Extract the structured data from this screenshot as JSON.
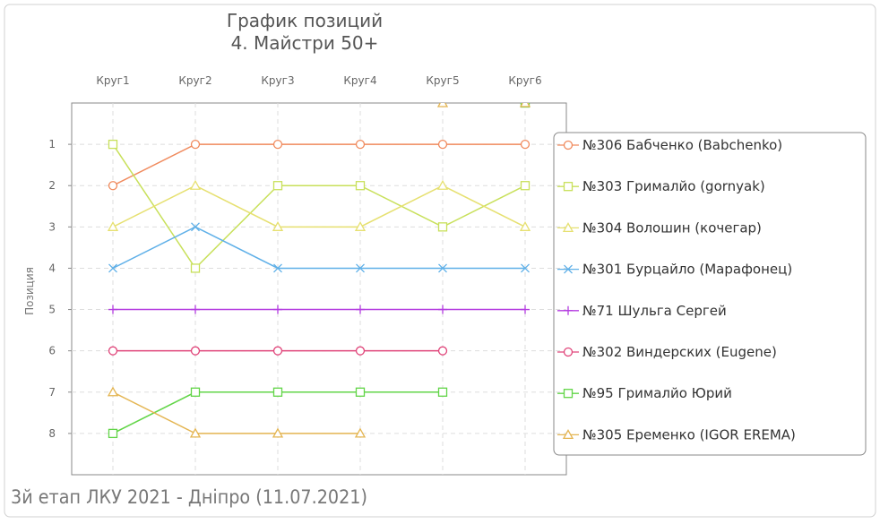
{
  "chart_data": {
    "type": "line",
    "title": "График позиций",
    "subtitle": "4. Майстри 50+",
    "y_label": "Позиция",
    "footer": "3й етап ЛКУ 2021 - Дніпро (11.07.2021)",
    "categories": [
      "Круг1",
      "Круг2",
      "Круг3",
      "Круг4",
      "Круг5",
      "Круг6"
    ],
    "ylim": [
      0,
      9
    ],
    "y_inverted": true,
    "yticks": [
      1,
      2,
      3,
      4,
      5,
      6,
      7,
      8
    ],
    "grid": true,
    "connect_zero": false,
    "legend": "right",
    "series": [
      {
        "name": "№306 Бабченко (Babchenko)",
        "color": "#f08a5d",
        "marker": "circle",
        "values": [
          2,
          1,
          1,
          1,
          1,
          1
        ]
      },
      {
        "name": "№303 Грималйо (gornyak)",
        "color": "#c8e05a",
        "marker": "square",
        "values": [
          1,
          4,
          2,
          2,
          3,
          2
        ]
      },
      {
        "name": "№304 Волошин (кочегар)",
        "color": "#e6e070",
        "marker": "triangle",
        "values": [
          3,
          2,
          3,
          3,
          2,
          3
        ]
      },
      {
        "name": "№301 Бурцайло (Марафонец)",
        "color": "#5fb0e8",
        "marker": "x",
        "values": [
          4,
          3,
          4,
          4,
          4,
          4
        ]
      },
      {
        "name": "№71 Шульга Сергей",
        "color": "#b43de0",
        "marker": "plus",
        "values": [
          5,
          5,
          5,
          5,
          5,
          5
        ]
      },
      {
        "name": "№302 Виндерских (Eugene)",
        "color": "#e0457a",
        "marker": "circle",
        "values": [
          6,
          6,
          6,
          6,
          6,
          null
        ]
      },
      {
        "name": "№95 Грималйо Юрий",
        "color": "#62d548",
        "marker": "square",
        "values": [
          8,
          7,
          7,
          7,
          7,
          0
        ]
      },
      {
        "name": "№305 Еременко (IGOR EREMA)",
        "color": "#e4b552",
        "marker": "triangle",
        "values": [
          7,
          8,
          8,
          8,
          0,
          0
        ]
      }
    ]
  }
}
